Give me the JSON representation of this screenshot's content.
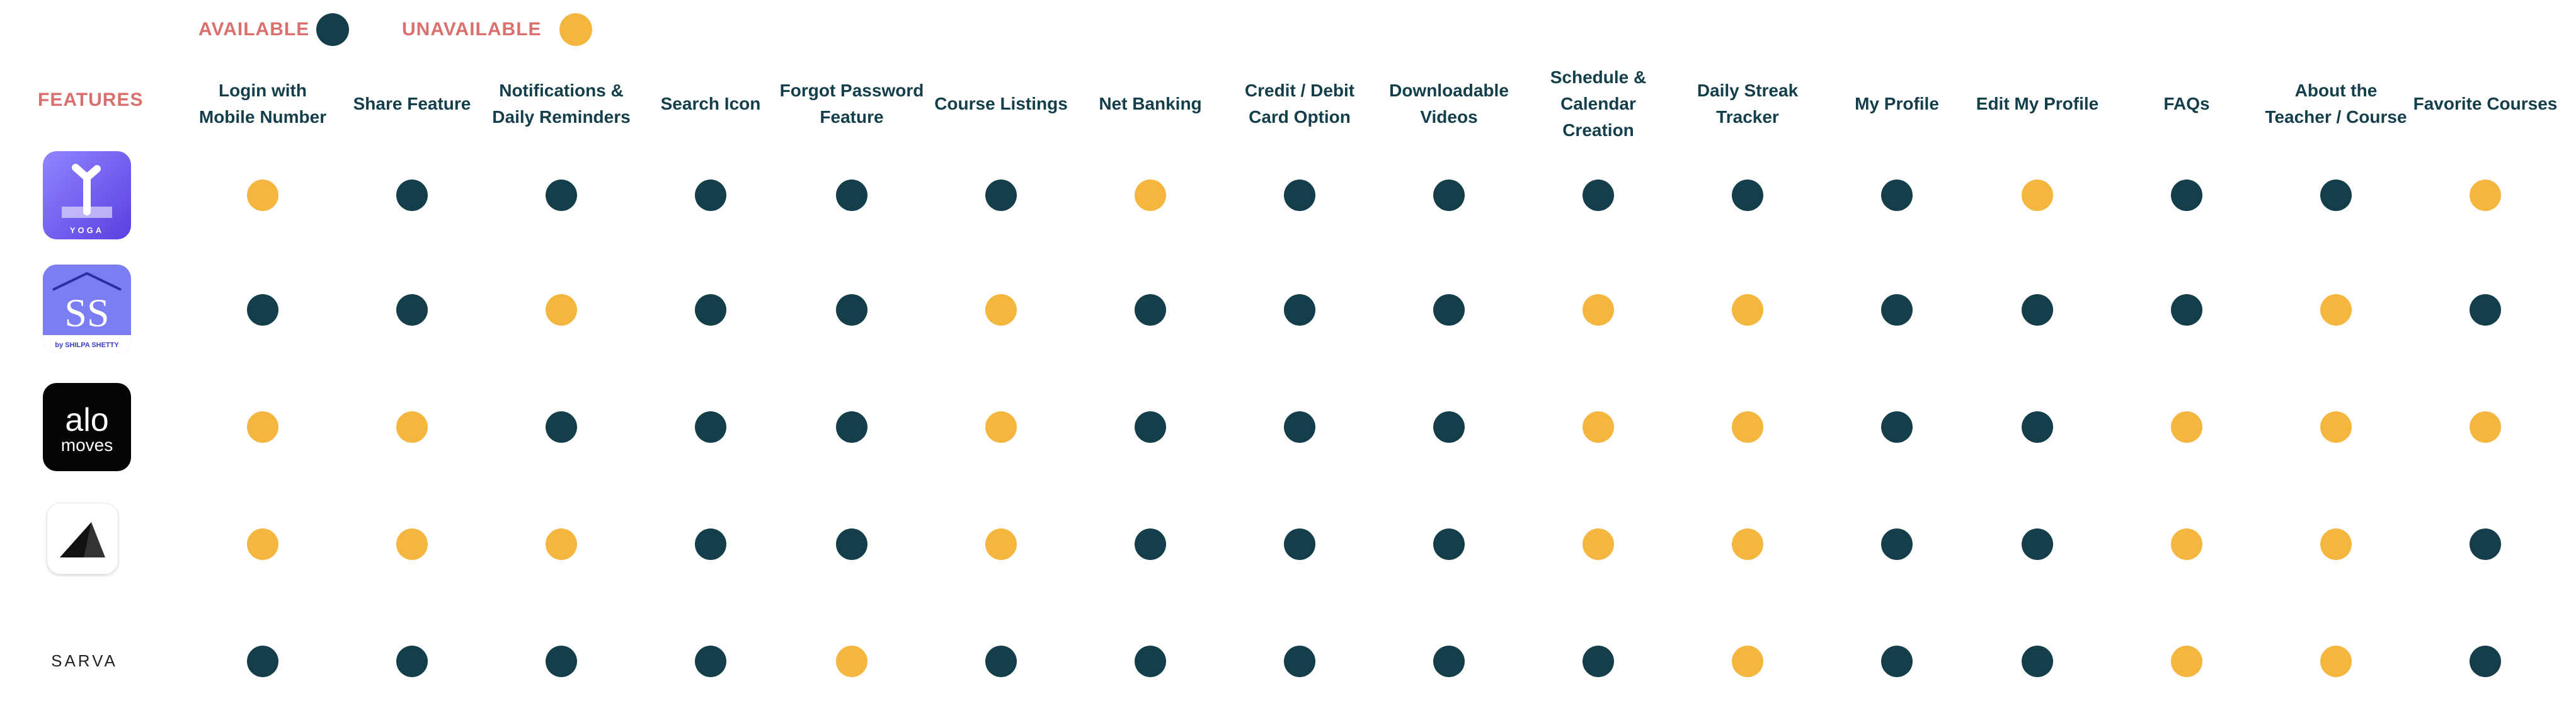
{
  "legend": {
    "available_label": "AVAILABLE",
    "unavailable_label": "UNAVAILABLE",
    "available_color": "#143f4a",
    "unavailable_color": "#f4b63f"
  },
  "features_label": "FEATURES",
  "chart_data": {
    "type": "table",
    "columns": [
      "Login with Mobile Number",
      "Share Feature",
      "Notifications & Daily Reminders",
      "Search Icon",
      "Forgot Password Feature",
      "Course Listings",
      "Net Banking",
      "Credit / Debit Card Option",
      "Downloadable Videos",
      "Schedule & Calendar Creation",
      "Daily Streak Tracker",
      "My Profile",
      "Edit My Profile",
      "FAQs",
      "About the Teacher / Course",
      "Favorite Courses"
    ],
    "rows": [
      {
        "app_icon": "yoga-app-logo",
        "logo_text": "YOGA",
        "availability": [
          0,
          1,
          1,
          1,
          1,
          1,
          0,
          1,
          1,
          1,
          1,
          1,
          0,
          1,
          1,
          0
        ]
      },
      {
        "app_icon": "shilpa-shetty-app-logo",
        "logo_text": "by SHILPA SHETTY",
        "availability": [
          1,
          1,
          0,
          1,
          1,
          0,
          1,
          1,
          1,
          0,
          0,
          1,
          1,
          1,
          0,
          1
        ]
      },
      {
        "app_icon": "alo-moves-app-logo",
        "logo_text": "alo moves",
        "availability": [
          0,
          0,
          1,
          1,
          1,
          0,
          1,
          1,
          1,
          0,
          0,
          1,
          1,
          0,
          0,
          0
        ]
      },
      {
        "app_icon": "triangle-app-logo",
        "logo_text": "",
        "availability": [
          0,
          0,
          0,
          1,
          1,
          0,
          1,
          1,
          1,
          0,
          0,
          1,
          1,
          0,
          0,
          1
        ]
      },
      {
        "app_icon": "sarva-app-logo",
        "logo_text": "SARVA",
        "availability": [
          1,
          1,
          1,
          1,
          0,
          1,
          1,
          1,
          1,
          1,
          0,
          1,
          1,
          0,
          0,
          1
        ]
      }
    ],
    "value_legend": {
      "1": "AVAILABLE",
      "0": "UNAVAILABLE"
    }
  }
}
